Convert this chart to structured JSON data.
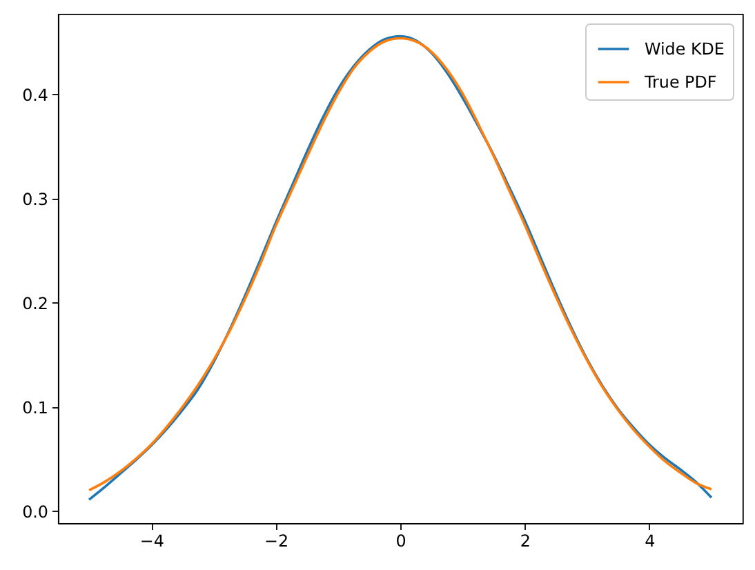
{
  "chart_data": {
    "type": "line",
    "series": [
      {
        "name": "Wide KDE",
        "color": "#1f77b4",
        "x": [
          -5,
          -4.75,
          -4.5,
          -4.25,
          -4,
          -3.75,
          -3.5,
          -3.25,
          -3,
          -2.75,
          -2.5,
          -2.25,
          -2,
          -1.75,
          -1.5,
          -1.25,
          -1,
          -0.75,
          -0.5,
          -0.25,
          0,
          0.25,
          0.5,
          0.75,
          1,
          1.25,
          1.5,
          1.75,
          2,
          2.25,
          2.5,
          2.75,
          3,
          3.25,
          3.5,
          3.75,
          4,
          4.25,
          4.5,
          4.75,
          5
        ],
        "values": [
          0.011,
          0.023,
          0.036,
          0.049,
          0.063,
          0.079,
          0.097,
          0.117,
          0.143,
          0.173,
          0.206,
          0.241,
          0.277,
          0.311,
          0.345,
          0.377,
          0.405,
          0.427,
          0.443,
          0.453,
          0.456,
          0.452,
          0.44,
          0.421,
          0.397,
          0.37,
          0.342,
          0.311,
          0.279,
          0.244,
          0.209,
          0.176,
          0.146,
          0.12,
          0.098,
          0.08,
          0.064,
          0.051,
          0.04,
          0.028,
          0.013
        ]
      },
      {
        "name": "True PDF",
        "color": "#ff7f0e",
        "x": [
          -5,
          -4.75,
          -4.5,
          -4.25,
          -4,
          -3.75,
          -3.5,
          -3.25,
          -3,
          -2.75,
          -2.5,
          -2.25,
          -2,
          -1.75,
          -1.5,
          -1.25,
          -1,
          -0.75,
          -0.5,
          -0.25,
          0,
          0.25,
          0.5,
          0.75,
          1,
          1.25,
          1.5,
          1.75,
          2,
          2.25,
          2.5,
          2.75,
          3,
          3.25,
          3.5,
          3.75,
          4,
          4.25,
          4.5,
          4.75,
          5
        ],
        "values": [
          0.02,
          0.028,
          0.038,
          0.05,
          0.064,
          0.081,
          0.1,
          0.121,
          0.145,
          0.172,
          0.203,
          0.237,
          0.274,
          0.307,
          0.34,
          0.372,
          0.401,
          0.425,
          0.441,
          0.451,
          0.454,
          0.451,
          0.441,
          0.424,
          0.401,
          0.372,
          0.341,
          0.308,
          0.275,
          0.24,
          0.206,
          0.174,
          0.145,
          0.119,
          0.097,
          0.078,
          0.062,
          0.048,
          0.037,
          0.027,
          0.021
        ]
      }
    ],
    "xlim": [
      -5.5,
      5.5
    ],
    "xticks": [
      -4,
      -2,
      0,
      2,
      4
    ],
    "ylim": [
      -0.0115,
      0.4775
    ],
    "yticks": [
      {
        "value": 0,
        "label": "0.0"
      },
      0.1,
      0.2,
      0.3,
      0.4
    ],
    "legend": "top right",
    "grid": false
  }
}
